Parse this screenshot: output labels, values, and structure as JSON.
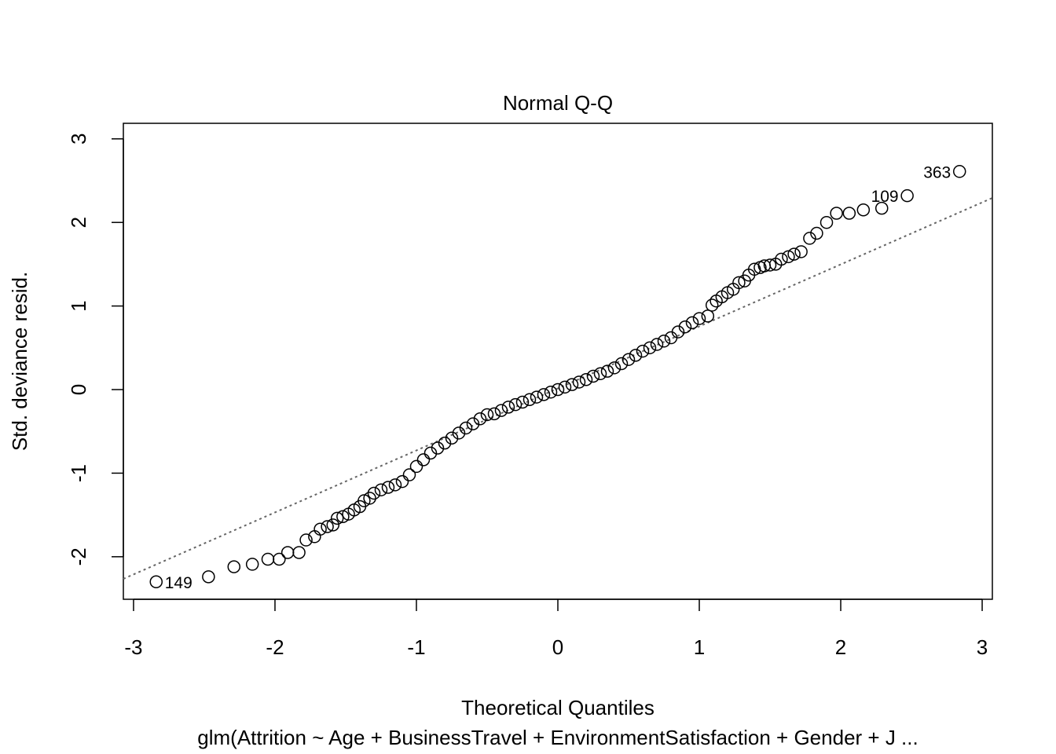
{
  "chart_data": {
    "type": "scatter",
    "title": "Normal Q-Q",
    "xlabel": "Theoretical Quantiles",
    "ylabel": "Std. deviance resid.",
    "subtitle": "glm(Attrition ~ Age + BusinessTravel + EnvironmentSatisfaction + Gender + J ...",
    "x": [
      -2.84,
      -2.47,
      -2.29,
      -2.16,
      -2.05,
      -1.97,
      -1.91,
      -1.83,
      -1.78,
      -1.72,
      -1.68,
      -1.63,
      -1.59,
      -1.56,
      -1.52,
      -1.48,
      -1.44,
      -1.4,
      -1.37,
      -1.33,
      -1.3,
      -1.25,
      -1.2,
      -1.15,
      -1.1,
      -1.05,
      -1.0,
      -0.95,
      -0.9,
      -0.85,
      -0.8,
      -0.75,
      -0.7,
      -0.65,
      -0.6,
      -0.55,
      -0.5,
      -0.45,
      -0.4,
      -0.35,
      -0.3,
      -0.25,
      -0.2,
      -0.15,
      -0.1,
      -0.05,
      0.0,
      0.05,
      0.1,
      0.15,
      0.2,
      0.25,
      0.3,
      0.35,
      0.4,
      0.45,
      0.5,
      0.55,
      0.6,
      0.65,
      0.7,
      0.75,
      0.8,
      0.85,
      0.9,
      0.95,
      1.0,
      1.06,
      1.09,
      1.12,
      1.16,
      1.2,
      1.24,
      1.28,
      1.32,
      1.35,
      1.39,
      1.43,
      1.46,
      1.5,
      1.54,
      1.58,
      1.63,
      1.67,
      1.72,
      1.78,
      1.83,
      1.9,
      1.97,
      2.06,
      2.16,
      2.29,
      2.47,
      2.84
    ],
    "values": [
      -2.3,
      -2.24,
      -2.12,
      -2.09,
      -2.03,
      -2.03,
      -1.95,
      -1.95,
      -1.8,
      -1.76,
      -1.67,
      -1.64,
      -1.62,
      -1.54,
      -1.52,
      -1.49,
      -1.44,
      -1.4,
      -1.33,
      -1.3,
      -1.24,
      -1.2,
      -1.17,
      -1.14,
      -1.1,
      -1.02,
      -0.92,
      -0.84,
      -0.76,
      -0.7,
      -0.64,
      -0.58,
      -0.52,
      -0.46,
      -0.41,
      -0.35,
      -0.3,
      -0.29,
      -0.25,
      -0.21,
      -0.18,
      -0.15,
      -0.12,
      -0.09,
      -0.06,
      -0.03,
      0.0,
      0.03,
      0.06,
      0.09,
      0.12,
      0.16,
      0.19,
      0.22,
      0.26,
      0.31,
      0.36,
      0.41,
      0.46,
      0.5,
      0.54,
      0.58,
      0.62,
      0.69,
      0.75,
      0.8,
      0.85,
      0.88,
      1.01,
      1.06,
      1.11,
      1.16,
      1.2,
      1.28,
      1.3,
      1.37,
      1.44,
      1.46,
      1.48,
      1.49,
      1.5,
      1.56,
      1.59,
      1.62,
      1.65,
      1.81,
      1.87,
      2.0,
      2.11,
      2.11,
      2.15,
      2.17,
      2.32,
      2.61
    ],
    "color": "#000000",
    "reference_line": {
      "x": [
        -3.072,
        3.072
      ],
      "y": [
        -2.265,
        2.293
      ],
      "color": "#666666"
    },
    "annotations": [
      {
        "text": "149",
        "x": -2.84,
        "y": -2.3
      },
      {
        "text": "109",
        "x": 2.47,
        "y": 2.32
      },
      {
        "text": "363",
        "x": 2.84,
        "y": 2.61
      }
    ],
    "xlim": [
      -3.072,
      3.072
    ],
    "ylim": [
      -2.509,
      3.186
    ],
    "xticks": [
      -3,
      -2,
      -1,
      0,
      1,
      2,
      3
    ],
    "yticks": [
      -2,
      -1,
      0,
      1,
      2,
      3
    ]
  }
}
